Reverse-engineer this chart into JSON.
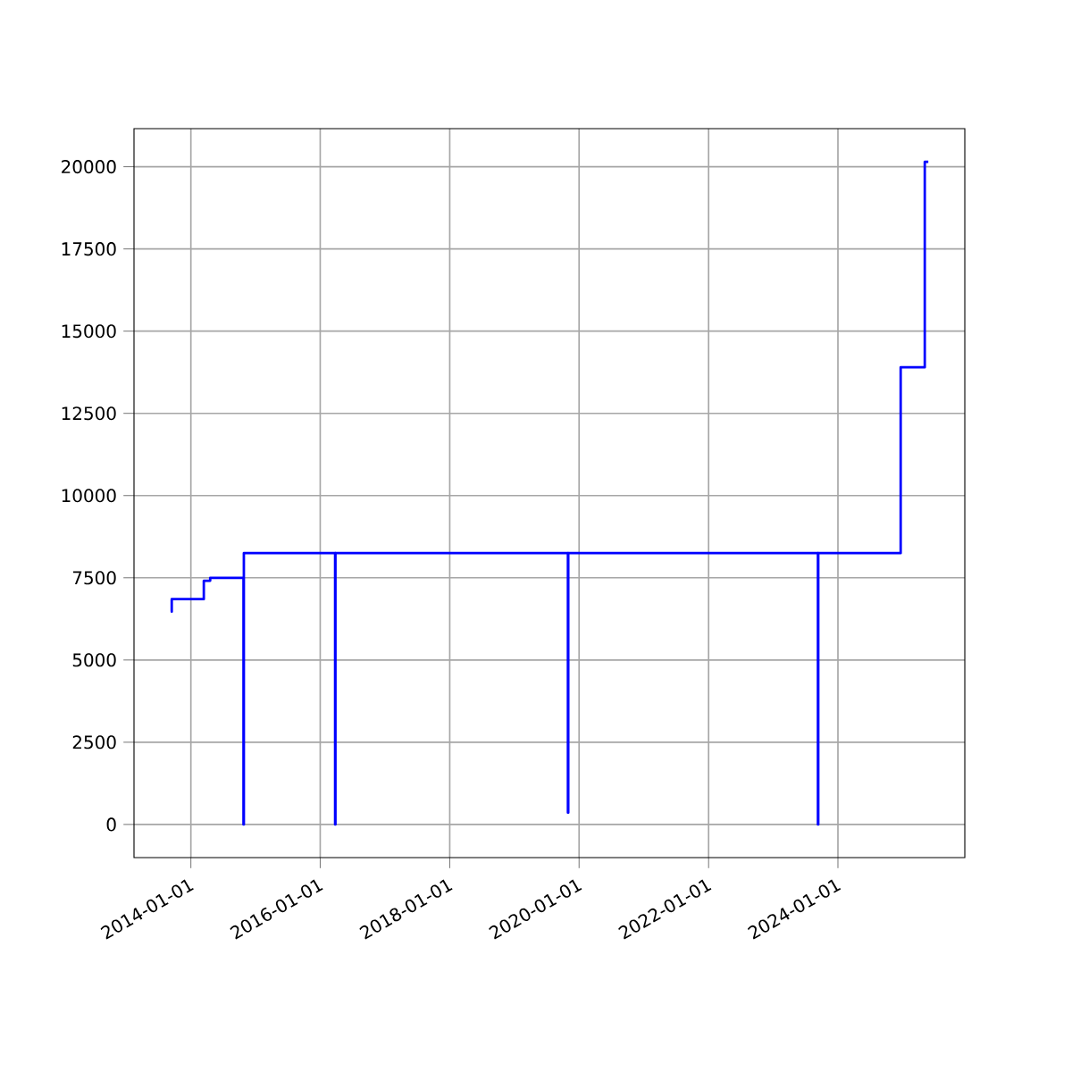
{
  "chart_data": {
    "type": "step",
    "color": "#0000ff",
    "x": [
      "2013-09-10",
      "2013-09-15",
      "2014-03-15",
      "2014-04-20",
      "2014-10-25",
      "2014-10-27",
      "2016-03-25",
      "2016-03-27",
      "2019-10-30",
      "2019-11-01",
      "2023-09-10",
      "2023-09-12",
      "2024-12-20",
      "2025-05-05",
      "2025-05-25"
    ],
    "values": [
      6470,
      6850,
      7410,
      7500,
      0,
      8250,
      0,
      8250,
      360,
      8250,
      0,
      8250,
      13900,
      20150,
      20150
    ],
    "xlim": [
      "2013-02-14",
      "2025-12-17"
    ],
    "xticks": [
      "2014-01-01",
      "2016-01-01",
      "2018-01-01",
      "2020-01-01",
      "2022-01-01",
      "2024-01-01"
    ],
    "ylim": [
      -1008,
      21158
    ],
    "yticks": [
      0,
      2500,
      5000,
      7500,
      10000,
      12500,
      15000,
      17500,
      20000
    ],
    "grid": true
  }
}
